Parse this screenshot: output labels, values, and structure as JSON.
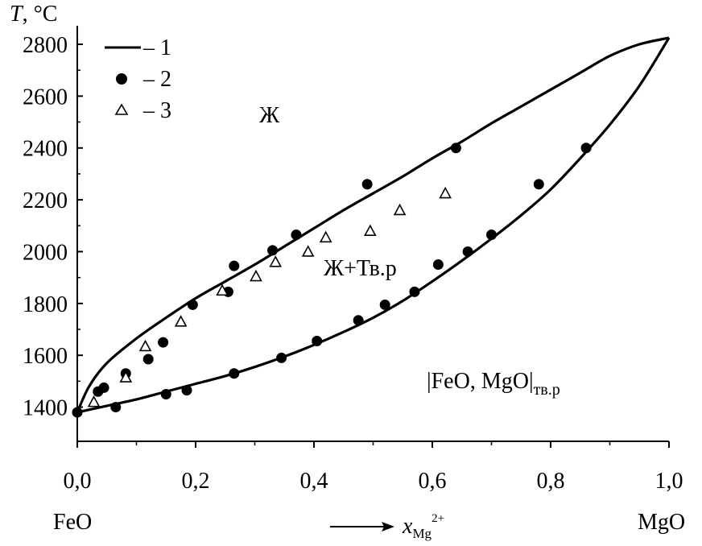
{
  "chart_data": {
    "type": "scatter",
    "y_axis_title": {
      "symbol": "T",
      "unit": ", °C"
    },
    "x_axis_title": {
      "symbol": "x",
      "subscript": "Mg",
      "superscript": "2+"
    },
    "xlim": [
      0.0,
      1.0
    ],
    "ylim": [
      1300,
      2850
    ],
    "x_ticks": [
      0.0,
      0.2,
      0.4,
      0.6,
      0.8,
      1.0
    ],
    "x_tick_labels": [
      "0,0",
      "0,2",
      "0,4",
      "0,6",
      "0,8",
      "1,0"
    ],
    "y_ticks": [
      1400,
      1600,
      1800,
      2000,
      2200,
      2400,
      2600,
      2800
    ],
    "y_tick_labels": [
      "1400",
      "1600",
      "1800",
      "2000",
      "2200",
      "2400",
      "2600",
      "2800"
    ],
    "grid": false,
    "legend_position": "top-left",
    "legend": [
      {
        "marker": "line",
        "label": "– 1"
      },
      {
        "marker": "filled-circle",
        "label": "– 2"
      },
      {
        "marker": "open-triangle",
        "label": "– 3"
      }
    ],
    "end_labels": {
      "left": "FeO",
      "right": "MgO"
    },
    "region_labels": {
      "liquid": "Ж",
      "two_phase": "Ж+Тв.р",
      "solid_main": "|FeO, MgO|",
      "solid_sub": "тв.р"
    },
    "series": [
      {
        "marker": "line",
        "role": "liquidus",
        "x": [
          0.0,
          0.02,
          0.05,
          0.1,
          0.15,
          0.2,
          0.25,
          0.3,
          0.35,
          0.4,
          0.45,
          0.5,
          0.55,
          0.6,
          0.65,
          0.7,
          0.75,
          0.8,
          0.85,
          0.9,
          0.95,
          1.0
        ],
        "y": [
          1380,
          1480,
          1570,
          1665,
          1745,
          1820,
          1885,
          1950,
          2020,
          2090,
          2160,
          2225,
          2290,
          2360,
          2425,
          2495,
          2560,
          2625,
          2690,
          2755,
          2800,
          2825
        ]
      },
      {
        "marker": "line",
        "role": "solidus",
        "x": [
          0.0,
          0.05,
          0.1,
          0.15,
          0.2,
          0.25,
          0.3,
          0.35,
          0.4,
          0.45,
          0.5,
          0.55,
          0.6,
          0.65,
          0.7,
          0.75,
          0.8,
          0.85,
          0.9,
          0.95,
          1.0
        ],
        "y": [
          1380,
          1405,
          1430,
          1460,
          1490,
          1520,
          1555,
          1595,
          1640,
          1690,
          1745,
          1810,
          1885,
          1965,
          2050,
          2140,
          2240,
          2360,
          2490,
          2640,
          2825
        ]
      },
      {
        "marker": "filled-circle",
        "x": [
          0.0,
          0.035,
          0.045,
          0.065,
          0.082,
          0.12,
          0.145,
          0.15,
          0.185,
          0.195,
          0.255,
          0.265,
          0.265,
          0.33,
          0.345,
          0.37,
          0.405,
          0.475,
          0.49,
          0.52,
          0.57,
          0.61,
          0.64,
          0.66,
          0.7,
          0.78,
          0.86
        ],
        "y": [
          1380,
          1460,
          1475,
          1400,
          1530,
          1585,
          1650,
          1450,
          1465,
          1795,
          1845,
          1945,
          1530,
          2005,
          1590,
          2065,
          1655,
          1735,
          2260,
          1795,
          1845,
          1950,
          2400,
          2000,
          2065,
          2260,
          2400
        ]
      },
      {
        "marker": "open-triangle",
        "x": [
          0.028,
          0.082,
          0.115,
          0.175,
          0.245,
          0.302,
          0.335,
          0.39,
          0.42,
          0.495,
          0.545,
          0.622
        ],
        "y": [
          1420,
          1515,
          1635,
          1730,
          1850,
          1905,
          1960,
          2000,
          2055,
          2080,
          2160,
          2225
        ]
      }
    ]
  }
}
